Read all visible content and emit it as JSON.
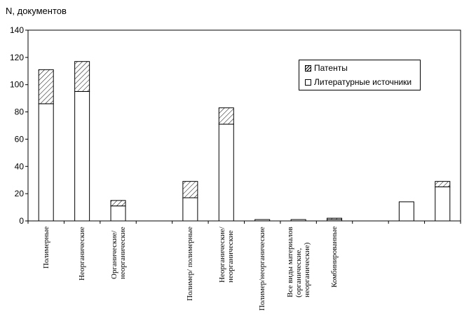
{
  "chart_data": {
    "type": "bar",
    "stacked": true,
    "ylabel": "N, документов",
    "ylim": [
      0,
      140
    ],
    "yticks": [
      0,
      20,
      40,
      60,
      80,
      100,
      120,
      140
    ],
    "grid": false,
    "legend_position": "top-right",
    "categories": [
      "Полимерные",
      "Неорганические",
      "Органические/\nнеорганические",
      "",
      "Полимер/ полимерные",
      "Неорганические/\nнеорганические",
      "Полимер/неорганические",
      "Все виды материалов\n(органические,\nнеорганические)",
      "Комбинированные",
      "",
      "",
      ""
    ],
    "series": [
      {
        "name": "Литературные источники",
        "values": [
          86,
          95,
          11,
          0,
          17,
          71,
          1,
          1,
          1,
          0,
          14,
          25
        ],
        "pattern": "none"
      },
      {
        "name": "Патенты",
        "values": [
          25,
          22,
          4,
          0,
          12,
          12,
          0,
          0,
          1,
          0,
          0,
          4
        ],
        "pattern": "hatched"
      }
    ],
    "legend": [
      "Патенты",
      "Литературные источники"
    ]
  }
}
